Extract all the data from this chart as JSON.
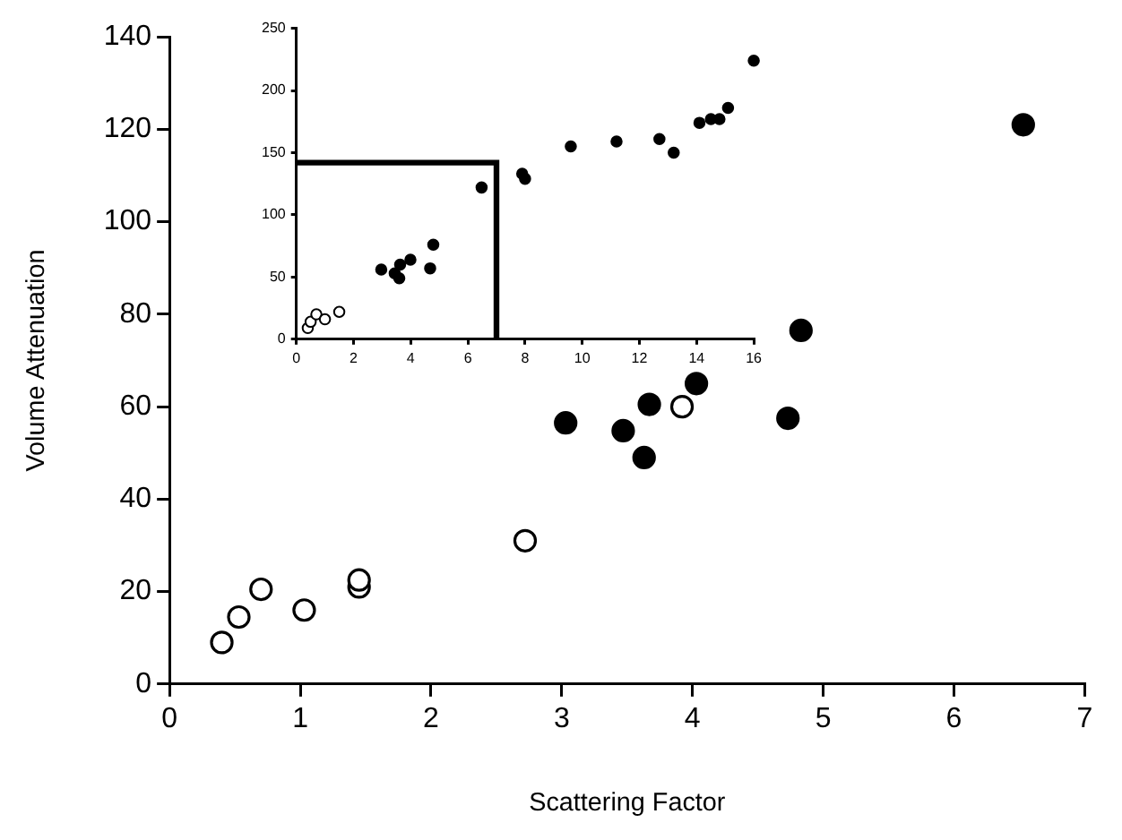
{
  "chart_data": [
    {
      "type": "scatter",
      "xlabel": "Scattering Factor",
      "ylabel": "Volume Attenuation",
      "xlim": [
        0,
        7
      ],
      "ylim": [
        0,
        140
      ],
      "xticks": [
        0,
        1,
        2,
        3,
        4,
        5,
        6,
        7
      ],
      "yticks": [
        0,
        20,
        40,
        60,
        80,
        100,
        120,
        140
      ],
      "marker": "circle",
      "legend": false,
      "grid": false,
      "series": [
        {
          "color": "#ffffff",
          "x": [
            0.4,
            0.53,
            0.7,
            1.03,
            1.45,
            1.45,
            2.72,
            3.92
          ],
          "values": [
            9,
            14.5,
            20.5,
            16,
            21,
            22.5,
            31,
            60
          ]
        },
        {
          "color": "#000000",
          "x": [
            3.03,
            3.47,
            3.63,
            3.67,
            4.03,
            4.73,
            4.83,
            6.53
          ],
          "values": [
            56.5,
            54.8,
            49,
            60.5,
            65,
            57.5,
            76.5,
            121
          ]
        }
      ]
    },
    {
      "type": "scatter",
      "xlim": [
        0,
        16
      ],
      "ylim": [
        0,
        250
      ],
      "xticks": [
        0,
        2,
        4,
        6,
        8,
        10,
        12,
        14,
        16
      ],
      "yticks": [
        0,
        50,
        100,
        150,
        200,
        250
      ],
      "marker": "circle",
      "legend": false,
      "grid": false,
      "series": [
        {
          "color": "#ffffff",
          "x": [
            0.4,
            0.5,
            0.7,
            1.0,
            1.5
          ],
          "values": [
            9,
            14,
            20,
            16,
            22
          ]
        },
        {
          "type": "line",
          "color": "#000000",
          "marker": "none",
          "x": [
            0,
            7,
            7
          ],
          "values": [
            142,
            142,
            0
          ]
        },
        {
          "color": "#000000",
          "x": [
            2.97,
            3.44,
            3.6,
            3.63,
            3.99,
            4.68,
            4.79,
            6.48,
            7.9,
            8.0,
            9.6,
            11.2,
            12.7,
            13.2,
            14.1,
            14.5,
            14.8,
            15.1,
            16.0
          ],
          "values": [
            56,
            53,
            49,
            60,
            64,
            57,
            76,
            122,
            133,
            129,
            155,
            159,
            161,
            150,
            174,
            177,
            177,
            186,
            224
          ]
        }
      ]
    }
  ]
}
